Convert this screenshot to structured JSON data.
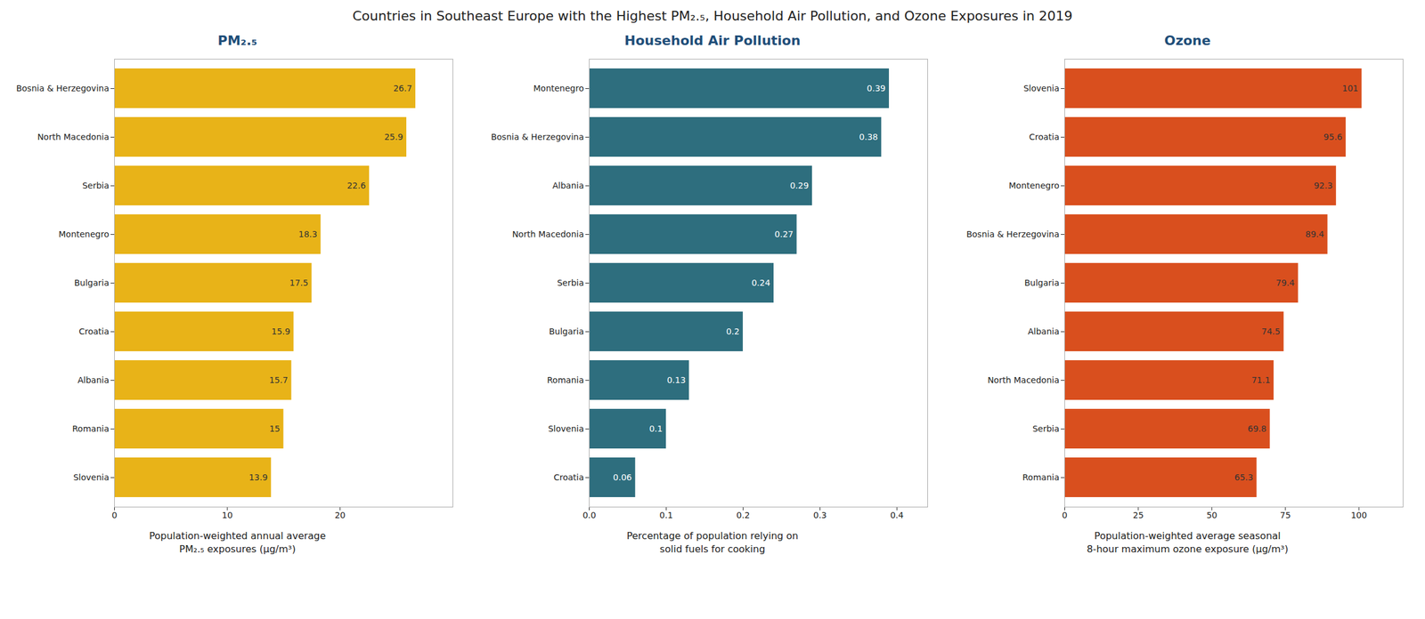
{
  "title": "Countries in Southeast Europe with the Highest PM₂.₅, Household Air Pollution, and Ozone Exposures in 2019",
  "chart_data": [
    {
      "type": "bar",
      "orientation": "horizontal",
      "subtitle": "PM₂.₅",
      "categories": [
        "Bosnia & Herzegovina",
        "North Macedonia",
        "Serbia",
        "Montenegro",
        "Bulgaria",
        "Croatia",
        "Albania",
        "Romania",
        "Slovenia"
      ],
      "values": [
        26.7,
        25.9,
        22.6,
        18.3,
        17.5,
        15.9,
        15.7,
        15.0,
        13.9
      ],
      "color": "#E8B318",
      "xlim": [
        0,
        30
      ],
      "xticks": [
        0,
        10,
        20
      ],
      "xlabel": "Population-weighted annual average\nPM₂.₅ exposures (μg/m³)",
      "data_labels": true,
      "grid": false
    },
    {
      "type": "bar",
      "orientation": "horizontal",
      "subtitle": "Household Air Pollution",
      "categories": [
        "Montenegro",
        "Bosnia & Herzegovina",
        "Albania",
        "North Macedonia",
        "Serbia",
        "Bulgaria",
        "Romania",
        "Slovenia",
        "Croatia"
      ],
      "values": [
        0.39,
        0.38,
        0.29,
        0.27,
        0.24,
        0.2,
        0.13,
        0.1,
        0.06
      ],
      "color": "#2E6E7E",
      "xlim": [
        0,
        0.44
      ],
      "xticks": [
        {
          "value": 0,
          "label": "0.0"
        },
        0.1,
        0.2,
        0.3,
        0.4
      ],
      "xlabel": "Percentage of population relying on\nsolid fuels for cooking",
      "data_labels": true,
      "grid": false
    },
    {
      "type": "bar",
      "orientation": "horizontal",
      "subtitle": "Ozone",
      "categories": [
        "Slovenia",
        "Croatia",
        "Montenegro",
        "Bosnia & Herzegovina",
        "Bulgaria",
        "Albania",
        "North Macedonia",
        "Serbia",
        "Romania"
      ],
      "values": [
        101,
        95.6,
        92.3,
        89.4,
        79.4,
        74.5,
        71.1,
        69.8,
        65.3
      ],
      "color": "#D94F1E",
      "xlim": [
        0,
        115
      ],
      "xticks": [
        0,
        25,
        50,
        75,
        100
      ],
      "xlabel": "Population-weighted average seasonal\n8-hour maximum ozone exposure (μg/m³)",
      "data_labels": true,
      "grid": false
    }
  ]
}
